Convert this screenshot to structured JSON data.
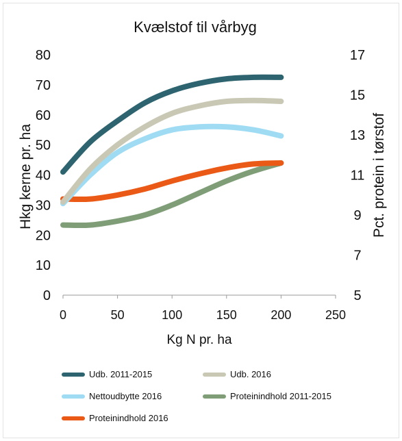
{
  "chart_data": {
    "type": "line",
    "title": "Kvælstof til vårbyg",
    "xlabel": "Kg N pr. ha",
    "ylabel": "Hkg kerne pr. ha",
    "y2label": "Pct. protein i tørstof",
    "xlim": [
      0,
      250
    ],
    "ylim": [
      0,
      80
    ],
    "y2lim": [
      5,
      17
    ],
    "x_ticks": [
      "0",
      "50",
      "100",
      "150",
      "200",
      "250"
    ],
    "y_ticks": [
      "0",
      "10",
      "20",
      "30",
      "40",
      "50",
      "60",
      "70",
      "80"
    ],
    "y2_ticks": [
      "5",
      "7",
      "9",
      "11",
      "13",
      "15",
      "17"
    ],
    "grid": false,
    "legend_position": "bottom",
    "series": [
      {
        "name": "Udb. 2011-2015",
        "axis": "left",
        "color": "#2e6470",
        "x": [
          0,
          25,
          50,
          75,
          100,
          125,
          150,
          175,
          200
        ],
        "y": [
          41,
          51,
          58,
          64,
          68,
          70.5,
          72,
          72.5,
          72.5
        ]
      },
      {
        "name": "Udb. 2016",
        "axis": "left",
        "color": "#c9c8b5",
        "x": [
          0,
          25,
          50,
          75,
          100,
          125,
          150,
          175,
          200
        ],
        "y": [
          31,
          42,
          50,
          56,
          60.5,
          63,
          64.5,
          64.8,
          64.5
        ]
      },
      {
        "name": "Nettoudbytte 2016",
        "axis": "left",
        "color": "#9fdcf4",
        "x": [
          0,
          25,
          50,
          75,
          100,
          125,
          150,
          175,
          200
        ],
        "y": [
          30.5,
          40,
          47.5,
          52,
          55,
          56,
          56,
          55,
          53
        ]
      },
      {
        "name": "Proteinindhold 2011-2015",
        "axis": "right",
        "color": "#7f9e78",
        "x": [
          0,
          25,
          50,
          75,
          100,
          125,
          150,
          175,
          200
        ],
        "y": [
          8.5,
          8.5,
          8.7,
          9.0,
          9.5,
          10.1,
          10.7,
          11.2,
          11.6
        ]
      },
      {
        "name": "Proteinindhold 2016",
        "axis": "right",
        "color": "#ea5a16",
        "x": [
          0,
          25,
          50,
          75,
          100,
          125,
          150,
          175,
          200
        ],
        "y": [
          9.8,
          9.8,
          10.0,
          10.3,
          10.7,
          11.05,
          11.35,
          11.55,
          11.6
        ]
      }
    ]
  }
}
